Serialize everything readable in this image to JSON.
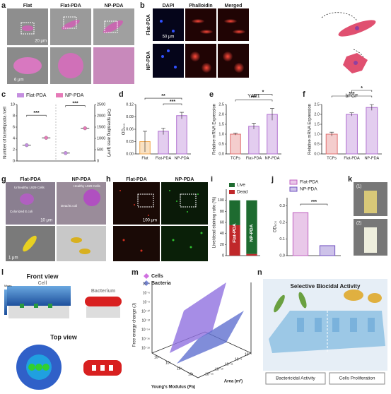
{
  "panel_letters": [
    "a",
    "b",
    "c",
    "d",
    "e",
    "f",
    "g",
    "h",
    "i",
    "j",
    "k",
    "l",
    "m",
    "n"
  ],
  "a": {
    "columns": [
      "Flat",
      "Flat-PDA",
      "NP-PDA"
    ],
    "scale_bars": [
      "20 μm",
      "6 μm"
    ]
  },
  "b": {
    "columns": [
      "DAPI",
      "Phalloidin",
      "Merged"
    ],
    "rows": [
      "Flat-PDA",
      "NP-PDA"
    ],
    "scale_bar": "50 μm"
  },
  "g": {
    "columns": [
      "Flat-PDA",
      "NP-PDA"
    ],
    "labels": [
      "Unhealthy L929 Cells",
      "Colonized E.coli",
      "Healthy L929 Cells",
      "Dead E.coli"
    ],
    "scale_bars": [
      "10 μm",
      "1 μm"
    ]
  },
  "h": {
    "columns": [
      "Flat-PDA",
      "NP-PDA"
    ],
    "scale_bar": "100 μm"
  },
  "k": {
    "labels": [
      "(1)",
      "(2)"
    ]
  },
  "l": {
    "titles": [
      "Front view",
      "Top view"
    ],
    "labels": [
      "Cell",
      "Bacterium",
      "Mises"
    ]
  },
  "m": {
    "legend": [
      "Cells",
      "Bacteria"
    ],
    "zlabel": "Free energy change (J)",
    "xlabel": "Young's Modulus (Pa)",
    "ylabel": "Area (m²)",
    "zticks": [
      "10⁻⁴",
      "10⁻⁶",
      "10⁻⁸",
      "10⁻¹⁰",
      "10⁻¹²",
      "10⁻¹⁴",
      "10⁻¹⁶",
      "10⁻¹⁸"
    ],
    "xticks": [
      "10⁸",
      "10⁶",
      "10⁴",
      "10²"
    ],
    "yticks": [
      "10⁻¹⁵",
      "10⁻¹³",
      "10⁻¹¹",
      "10⁻⁹",
      "10⁻⁷"
    ]
  },
  "n": {
    "title": "Selective Biocidal Activity",
    "labels": [
      "Bactericidal  Activity",
      "Cells Proliferation"
    ]
  },
  "chart_data": [
    {
      "type": "dot",
      "series": [
        {
          "name": "Flat-PDA",
          "color": "#c58fe0",
          "values": [
            2.8,
            350
          ]
        },
        {
          "name": "NP-PDA",
          "color": "#e67ab8",
          "values": [
            4.1,
            1450
          ]
        }
      ],
      "value_axes": [
        "y",
        "y2"
      ],
      "ylabel": "Number of lamellipodia /cell",
      "y2label": "Cell spreading area (μm²)",
      "ylim": [
        0,
        10
      ],
      "yticks": [
        0,
        2,
        4,
        6,
        8,
        10
      ],
      "y2lim": [
        0,
        2500
      ],
      "y2ticks": [
        0,
        500,
        1000,
        1500,
        2000,
        2500
      ],
      "annotations": [
        "***",
        "***"
      ]
    },
    {
      "type": "bar",
      "ylabel": "OD₆₀₀",
      "categories": [
        "Flat",
        "Flat-PDA",
        "NP-PDA"
      ],
      "values": [
        0.03,
        0.055,
        0.093
      ],
      "errors": [
        0.025,
        0.008,
        0.008
      ],
      "colors": [
        "#f0a850",
        "#b070d0",
        "#b070d0"
      ],
      "ylim": [
        0,
        0.12
      ],
      "yticks": [
        {
          "value": 0,
          "label": "0.00"
        },
        0.03,
        0.06,
        0.09,
        0.12
      ],
      "annotations": [
        "**",
        "***"
      ]
    },
    {
      "type": "bar",
      "title": "YAP1",
      "ylabel": "Relative mRNA Expression",
      "categories": [
        "TCPs",
        "Flat-PDA",
        "NP-PDA"
      ],
      "values": [
        1.0,
        1.4,
        2.0
      ],
      "errors": [
        0.05,
        0.15,
        0.3
      ],
      "colors": [
        "#e07070",
        "#b070d0",
        "#b070d0"
      ],
      "ylim": [
        0,
        2.5
      ],
      "yticks": [
        {
          "value": 0,
          "label": "0.0"
        },
        0.5,
        {
          "value": 1,
          "label": "1.0"
        },
        1.5,
        {
          "value": 2,
          "label": "2.0"
        },
        2.5
      ],
      "annotations": [
        "*",
        "***"
      ]
    },
    {
      "type": "bar",
      "title": "bFGF",
      "ylabel": "Relative mRNA Expression",
      "categories": [
        "TCPs",
        "Flat-PDA",
        "NP-PDA"
      ],
      "values": [
        1.0,
        2.0,
        2.35
      ],
      "errors": [
        0.1,
        0.08,
        0.15
      ],
      "colors": [
        "#e07070",
        "#b070d0",
        "#b070d0"
      ],
      "ylim": [
        0,
        2.5
      ],
      "yticks": [
        {
          "value": 0,
          "label": "0.0"
        },
        0.5,
        {
          "value": 1,
          "label": "1.0"
        },
        1.5,
        {
          "value": 2,
          "label": "2.0"
        },
        2.5
      ],
      "annotations": [
        "*",
        "***"
      ]
    },
    {
      "type": "stacked_bar",
      "ylabel": "Live/dead staining ratio (%)",
      "categories": [
        "Flat-PDA",
        "NP-PDA"
      ],
      "series": [
        {
          "name": "Live",
          "color": "#1e6b30",
          "values": [
            45,
            97
          ]
        },
        {
          "name": "Dead",
          "color": "#c0282a",
          "values": [
            55,
            3
          ]
        }
      ],
      "ylim": [
        0,
        120
      ],
      "yticks": [
        0,
        20,
        40,
        60,
        80,
        100
      ]
    },
    {
      "type": "bar",
      "ylabel": "OD₆₀₀",
      "series": [
        {
          "name": "Flat-PDA",
          "color": "#c060c0",
          "values": [
            0.26
          ]
        },
        {
          "name": "NP-PDA",
          "color": "#7050c0",
          "values": [
            0.06
          ]
        }
      ],
      "ylim": [
        0,
        0.35
      ],
      "yticks": [
        {
          "value": 0,
          "label": "0.0"
        },
        0.1,
        0.2,
        0.3
      ],
      "annotations": [
        "***"
      ]
    }
  ]
}
